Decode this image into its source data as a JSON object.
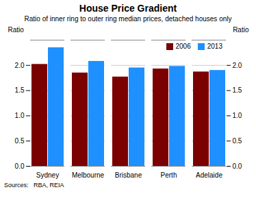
{
  "chart_data": {
    "type": "bar",
    "title": "House Price Gradient",
    "subtitle": "Ratio of inner ring to outer ring median prices, detached houses only",
    "source": "Sources:   RBA, REIA",
    "categories": [
      "Sydney",
      "Melbourne",
      "Brisbane",
      "Perth",
      "Adelaide"
    ],
    "series": [
      {
        "name": "2006",
        "color": "#7B0000",
        "values": [
          2.02,
          1.85,
          1.77,
          1.93,
          1.87
        ]
      },
      {
        "name": "2013",
        "color": "#1E90FF",
        "values": [
          2.35,
          2.08,
          1.95,
          1.98,
          1.9
        ]
      }
    ],
    "ylabel": "Ratio",
    "y2label": "Ratio",
    "ylim": [
      0.0,
      2.5
    ],
    "yticks": [
      {
        "value": 0,
        "label": "0.0"
      },
      0.5,
      {
        "value": 1,
        "label": "1.0"
      },
      1.5,
      {
        "value": 2,
        "label": "2.0"
      }
    ],
    "y2lim": [
      0.0,
      2.5
    ],
    "y2ticks": [
      {
        "value": 0,
        "label": "0.0"
      },
      0.5,
      {
        "value": 1,
        "label": "1.0"
      },
      1.5,
      {
        "value": 2,
        "label": "2.0"
      }
    ],
    "grid": true,
    "legend": "upper right"
  }
}
